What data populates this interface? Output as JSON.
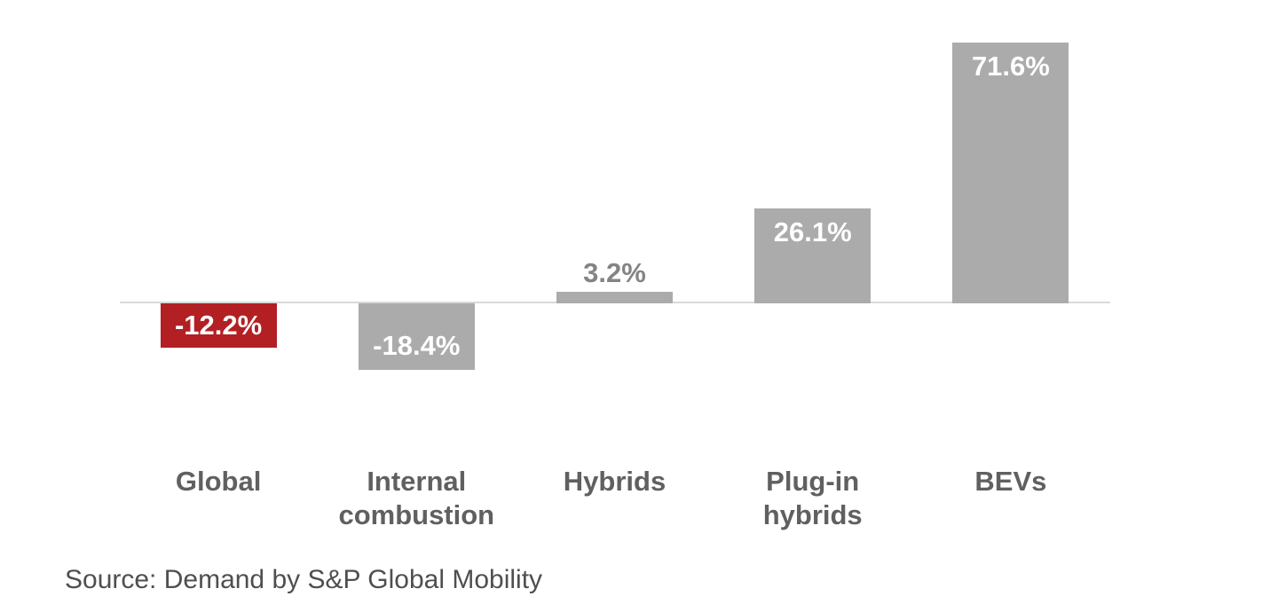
{
  "chart_data": {
    "type": "bar",
    "categories": [
      "Global",
      "Internal combustion",
      "Hybrids",
      "Plug-in hybrids",
      "BEVs"
    ],
    "values": [
      -12.2,
      -18.4,
      3.2,
      26.1,
      71.6
    ],
    "value_labels": [
      "-12.2%",
      "-18.4%",
      "3.2%",
      "26.1%",
      "71.6%"
    ],
    "bar_colors": [
      "#b22024",
      "#ababab",
      "#ababab",
      "#ababab",
      "#ababab"
    ],
    "label_placements": [
      "inside-center",
      "inside-end",
      "outside-end",
      "inside-end",
      "inside-end"
    ],
    "title": "",
    "xlabel": "",
    "ylabel": "",
    "ylim": [
      -18.4,
      71.6
    ],
    "grid": false,
    "legend": false,
    "colors": {
      "accent_red": "#b22024",
      "bar_gray": "#ababab",
      "inside_label": "#ffffff",
      "outside_label": "#848484",
      "category_label": "#606060",
      "axis_line": "#d9d9d9",
      "source_text": "#4f4f4f"
    }
  },
  "footer": {
    "source": "Source: Demand by S&P Global Mobility"
  }
}
